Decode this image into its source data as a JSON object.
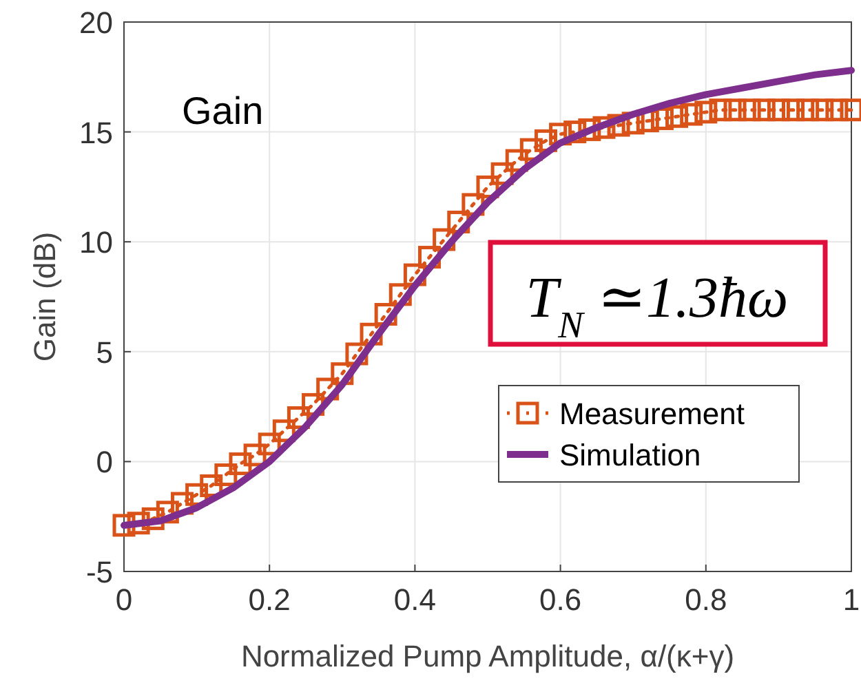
{
  "chart_data": {
    "type": "line",
    "xlabel": "Normalized Pump Amplitude, α/(κ+γ)",
    "ylabel": "Gain (dB)",
    "annotations": [
      "Gain",
      "T$_{N}$ ≃1.3ħω"
    ],
    "xlim": [
      0,
      1
    ],
    "xticks": [
      0,
      0.2,
      0.4,
      0.6,
      0.8,
      1
    ],
    "ylim": [
      -5,
      20
    ],
    "yticks": [
      -5,
      0,
      5,
      10,
      15,
      20
    ],
    "grid": true,
    "legend": "right",
    "series": [
      {
        "name": "Measurement",
        "color": "#d95319",
        "marker": "square",
        "line_style": "dotted",
        "x": [
          0,
          0.02,
          0.04,
          0.06,
          0.08,
          0.1,
          0.12,
          0.14,
          0.16,
          0.18,
          0.2,
          0.22,
          0.24,
          0.26,
          0.28,
          0.3,
          0.32,
          0.34,
          0.36,
          0.38,
          0.4,
          0.42,
          0.44,
          0.46,
          0.48,
          0.5,
          0.52,
          0.54,
          0.56,
          0.58,
          0.6,
          0.62,
          0.64,
          0.66,
          0.68,
          0.7,
          0.72,
          0.74,
          0.76,
          0.78,
          0.8,
          0.82,
          0.84,
          0.86,
          0.88,
          0.9,
          0.92,
          0.94,
          0.96,
          0.98,
          1
        ],
        "values": [
          -2.9,
          -2.8,
          -2.6,
          -2.3,
          -1.9,
          -1.5,
          -1.1,
          -0.6,
          -0.1,
          0.3,
          0.8,
          1.4,
          2.0,
          2.6,
          3.3,
          4.0,
          4.9,
          5.8,
          6.7,
          7.6,
          8.5,
          9.3,
          10.1,
          10.9,
          11.7,
          12.5,
          13.1,
          13.7,
          14.2,
          14.6,
          14.9,
          15.0,
          15.1,
          15.2,
          15.3,
          15.4,
          15.5,
          15.6,
          15.7,
          15.8,
          15.9,
          16.0,
          16.0,
          16.0,
          16.0,
          16.0,
          16.0,
          16.0,
          16.0,
          16.0,
          16.0
        ]
      },
      {
        "name": "Simulation",
        "color": "#7e2f8e",
        "marker": "none",
        "line_style": "solid",
        "x": [
          0,
          0.05,
          0.1,
          0.15,
          0.2,
          0.25,
          0.3,
          0.35,
          0.4,
          0.45,
          0.5,
          0.55,
          0.6,
          0.65,
          0.7,
          0.75,
          0.8,
          0.85,
          0.9,
          0.95,
          1
        ],
        "values": [
          -2.9,
          -2.7,
          -2.1,
          -1.2,
          0,
          1.6,
          3.5,
          5.8,
          8,
          10,
          11.8,
          13.3,
          14.5,
          15.2,
          15.8,
          16.3,
          16.7,
          17.0,
          17.3,
          17.6,
          17.8
        ]
      }
    ]
  }
}
